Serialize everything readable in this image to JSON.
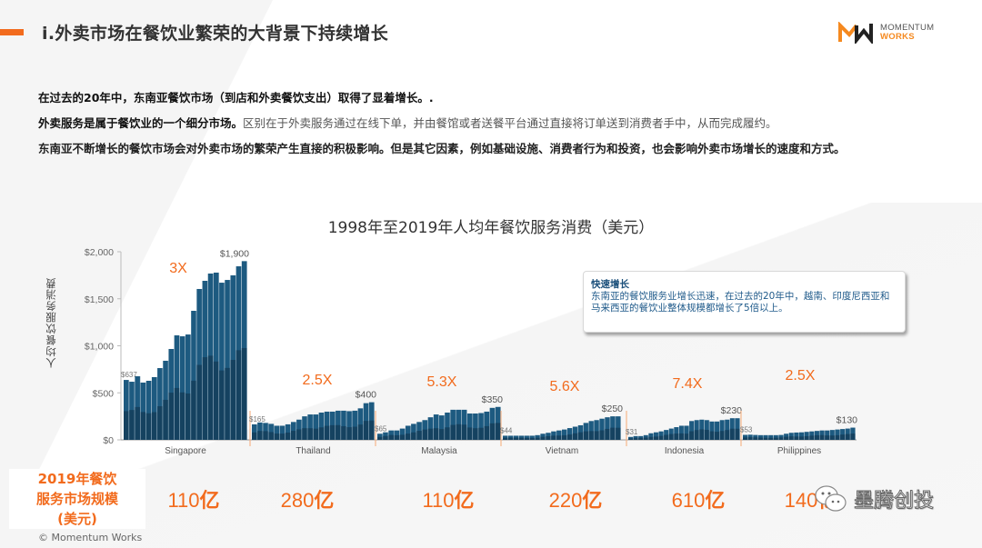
{
  "header": {
    "title": "i.外卖市场在餐饮业繁荣的大背景下持续增长",
    "logo": {
      "line1": "MOMENTUM",
      "line2": "WORKS",
      "icon": "mw-logo-icon"
    }
  },
  "bullets": [
    "在过去的20年中，东南亚餐饮市场（到店和外卖餐饮支出）取得了显着增长。.",
    {
      "strong": "外卖服务是属于餐饮业的一个细分市场。",
      "light": "区别在于外卖服务通过在线下单，并由餐馆或者送餐平台通过直接将订单送到消费者手中，从而完成履约。"
    },
    "东南亚不断增长的餐饮市场会对外卖市场的繁荣产生直接的积极影响。但是其它因素，例如基础设施、消费者行为和投资，也会影响外卖市场增长的速度和方式。"
  ],
  "callout": {
    "title": "快速增长",
    "body": "东南亚的餐饮服务业增长迅速，在过去的20年中，越南、印度尼西亚和马来西亚的餐饮业整体规模都增长了5倍以上。"
  },
  "market_size": {
    "label_line1": "2019年餐饮",
    "label_line2": "服务市场规模",
    "label_line3": "(美元)",
    "values": [
      {
        "country": "Singapore",
        "num": "110",
        "unit": "亿"
      },
      {
        "country": "Thailand",
        "num": "280",
        "unit": "亿"
      },
      {
        "country": "Malaysia",
        "num": "110",
        "unit": "亿"
      },
      {
        "country": "Vietnam",
        "num": "220",
        "unit": "亿"
      },
      {
        "country": "Indonesia",
        "num": "610",
        "unit": "亿"
      },
      {
        "country": "Philippines",
        "num": "140",
        "unit": "亿"
      }
    ]
  },
  "footer": {
    "copyright": "© Momentum Works",
    "watermark": "墨腾创投"
  },
  "colors": {
    "accent": "#f26b1d",
    "bar": "#1d5a80",
    "bar_dark": "#153f5c",
    "separator": "#f7b68a"
  },
  "chart_data": {
    "type": "bar",
    "title": "1998年至2019年人均年餐饮服务消费（美元）",
    "xlabel": "",
    "ylabel": "人均餐饮服务消费",
    "ylim": [
      0,
      2000
    ],
    "yticks": [
      "$0",
      "$500",
      "$1,000",
      "$1,500",
      "$2,000"
    ],
    "grid": false,
    "years": "1998-2019",
    "series": [
      {
        "name": "Singapore",
        "growth": "3X",
        "start_label": "$637",
        "end_label": "$1,900",
        "values": [
          637,
          618,
          676,
          609,
          628,
          667,
          763,
          841,
          966,
          1111,
          1101,
          1120,
          1372,
          1604,
          1691,
          1768,
          1778,
          1671,
          1700,
          1749,
          1845,
          1900
        ]
      },
      {
        "name": "Thailand",
        "growth": "2.5X",
        "start_label": "$165",
        "end_label": "$400",
        "values": [
          165,
          185,
          180,
          170,
          150,
          150,
          165,
          190,
          215,
          250,
          270,
          270,
          290,
          300,
          300,
          310,
          310,
          305,
          310,
          335,
          390,
          400
        ]
      },
      {
        "name": "Malaysia",
        "growth": "5.3X",
        "start_label": "$65",
        "end_label": "$350",
        "values": [
          65,
          80,
          100,
          100,
          120,
          150,
          170,
          190,
          210,
          240,
          270,
          260,
          290,
          320,
          320,
          320,
          280,
          280,
          285,
          300,
          340,
          350
        ]
      },
      {
        "name": "Vietnam",
        "growth": "5.6X",
        "start_label": "$44",
        "end_label": "$250",
        "values": [
          44,
          44,
          44,
          44,
          44,
          44,
          50,
          65,
          75,
          90,
          100,
          110,
          125,
          140,
          155,
          180,
          200,
          210,
          225,
          240,
          250,
          250
        ]
      },
      {
        "name": "Indonesia",
        "growth": "7.4X",
        "start_label": "$31",
        "end_label": "$230",
        "values": [
          31,
          40,
          40,
          50,
          70,
          80,
          90,
          105,
          120,
          135,
          150,
          150,
          200,
          210,
          215,
          210,
          195,
          195,
          210,
          215,
          230,
          230
        ]
      },
      {
        "name": "Philippines",
        "growth": "2.5X",
        "start_label": "$53",
        "end_label": "$130",
        "values": [
          53,
          55,
          52,
          50,
          50,
          50,
          50,
          52,
          65,
          75,
          78,
          80,
          85,
          90,
          95,
          100,
          100,
          105,
          110,
          115,
          120,
          130
        ]
      }
    ]
  }
}
